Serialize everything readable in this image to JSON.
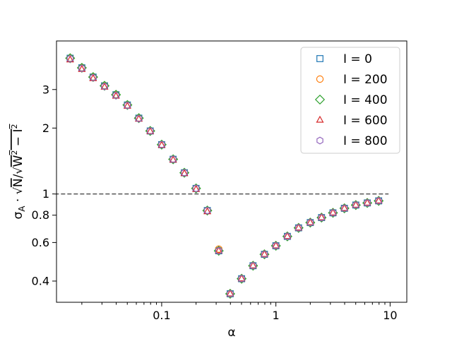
{
  "chart_data": {
    "type": "scatter",
    "title": "",
    "xlabel": "α",
    "ylabel": "σ_A · √N / √(W² − I²)",
    "xscale": "log",
    "yscale": "log",
    "xlim": [
      0.012,
      14
    ],
    "ylim": [
      0.32,
      5.0
    ],
    "x_ticks": [
      {
        "value": 0.1,
        "label": "0.1"
      },
      {
        "value": 1,
        "label": "1"
      },
      {
        "value": 10,
        "label": "10"
      }
    ],
    "y_ticks": [
      {
        "value": 0.4,
        "label": "0.4"
      },
      {
        "value": 0.6,
        "label": "0.6"
      },
      {
        "value": 0.8,
        "label": "0.8"
      },
      {
        "value": 1,
        "label": "1"
      },
      {
        "value": 2,
        "label": "2"
      },
      {
        "value": 3,
        "label": "3"
      }
    ],
    "grid": false,
    "legend_position": "top-right",
    "reference_line": {
      "y": 1,
      "style": "dashed",
      "color": "#555555"
    },
    "x": [
      0.0158,
      0.02,
      0.0251,
      0.0316,
      0.0398,
      0.0501,
      0.0631,
      0.0794,
      0.1,
      0.126,
      0.158,
      0.2,
      0.251,
      0.316,
      0.398,
      0.501,
      0.631,
      0.794,
      1.0,
      1.26,
      1.58,
      2.0,
      2.51,
      3.16,
      3.98,
      5.01,
      6.31,
      7.94
    ],
    "series": [
      {
        "name": "I = 0",
        "marker": "square",
        "color": "#1f77b4",
        "values": [
          4.17,
          3.77,
          3.42,
          3.12,
          2.84,
          2.55,
          2.22,
          1.94,
          1.68,
          1.44,
          1.25,
          1.06,
          0.84,
          0.55,
          0.35,
          0.41,
          0.47,
          0.53,
          0.58,
          0.64,
          0.7,
          0.74,
          0.78,
          0.82,
          0.86,
          0.89,
          0.91,
          0.93
        ]
      },
      {
        "name": "I = 200",
        "marker": "circle",
        "color": "#ff7f0e",
        "values": [
          4.17,
          3.77,
          3.42,
          3.12,
          2.84,
          2.55,
          2.22,
          1.94,
          1.68,
          1.44,
          1.25,
          1.06,
          0.84,
          0.56,
          0.35,
          0.41,
          0.47,
          0.53,
          0.58,
          0.64,
          0.7,
          0.74,
          0.78,
          0.82,
          0.86,
          0.89,
          0.91,
          0.93
        ]
      },
      {
        "name": "I = 400",
        "marker": "diamond",
        "color": "#2ca02c",
        "values": [
          4.17,
          3.77,
          3.42,
          3.12,
          2.84,
          2.55,
          2.22,
          1.94,
          1.68,
          1.44,
          1.25,
          1.06,
          0.84,
          0.55,
          0.35,
          0.41,
          0.47,
          0.53,
          0.58,
          0.64,
          0.7,
          0.74,
          0.78,
          0.82,
          0.86,
          0.89,
          0.91,
          0.93
        ]
      },
      {
        "name": "I = 600",
        "marker": "triangle",
        "color": "#d62728",
        "values": [
          4.1,
          3.71,
          3.37,
          3.08,
          2.8,
          2.52,
          2.2,
          1.93,
          1.67,
          1.43,
          1.24,
          1.05,
          0.83,
          0.55,
          0.35,
          0.41,
          0.47,
          0.53,
          0.58,
          0.64,
          0.7,
          0.74,
          0.78,
          0.82,
          0.86,
          0.89,
          0.91,
          0.93
        ]
      },
      {
        "name": "I = 800",
        "marker": "hexagon",
        "color": "#9467bd",
        "values": [
          4.15,
          3.75,
          3.4,
          3.1,
          2.82,
          2.54,
          2.21,
          1.94,
          1.68,
          1.44,
          1.25,
          1.06,
          0.84,
          0.55,
          0.35,
          0.41,
          0.47,
          0.53,
          0.58,
          0.64,
          0.7,
          0.74,
          0.78,
          0.82,
          0.86,
          0.89,
          0.91,
          0.93
        ]
      }
    ]
  }
}
